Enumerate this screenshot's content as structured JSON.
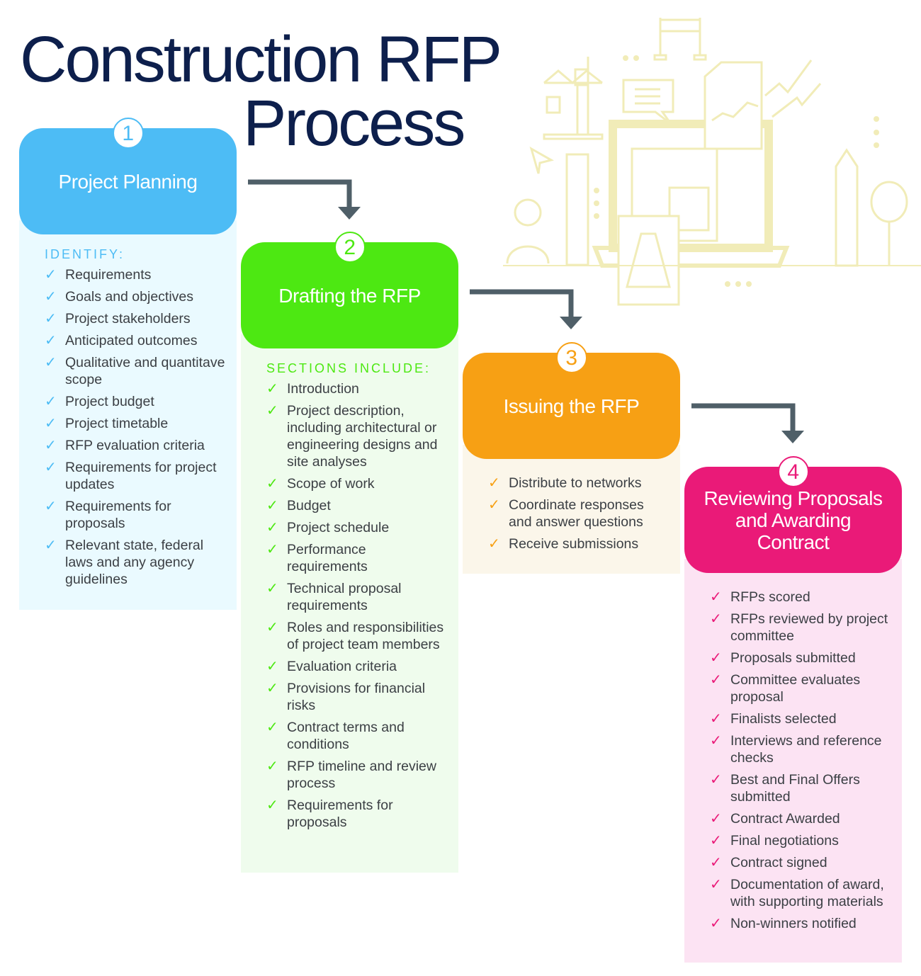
{
  "title": {
    "line1": "Construction RFP",
    "line2": "Process"
  },
  "colors": {
    "title": "#0d1f4c",
    "arrow": "#4f5f68",
    "illustration": "#f1ecb8"
  },
  "steps": [
    {
      "number": "1",
      "title": "Project Planning",
      "subtitle": "IDENTIFY:",
      "color": "#4dbcf5",
      "body_bg": "#eafaff",
      "check_icon": "checkmark-icon",
      "items": [
        "Requirements",
        "Goals and objectives",
        "Project stakeholders",
        "Anticipated outcomes",
        "Qualitative and quantitave scope",
        "Project budget",
        "Project timetable",
        "RFP evaluation criteria",
        "Requirements for project updates",
        "Requirements for proposals",
        "Relevant state, federal laws and any agency guidelines"
      ]
    },
    {
      "number": "2",
      "title": "Drafting the RFP",
      "subtitle": "SECTIONS INCLUDE:",
      "color": "#4de812",
      "body_bg": "#effced",
      "check_icon": "checkmark-icon",
      "items": [
        "Introduction",
        "Project description, including architectural or engineering designs and site analyses",
        "Scope of work",
        "Budget",
        "Project schedule",
        "Performance requirements",
        "Technical proposal requirements",
        "Roles and responsibilities of project team members",
        "Evaluation criteria",
        "Provisions for financial risks",
        "Contract terms and conditions",
        "RFP timeline and review process",
        "Requirements for proposals"
      ]
    },
    {
      "number": "3",
      "title": "Issuing the RFP",
      "color": "#f7a014",
      "body_bg": "#fbf6ea",
      "check_icon": "checkmark-icon",
      "items": [
        "Distribute to networks",
        "Coordinate responses and answer questions",
        "Receive submissions"
      ]
    },
    {
      "number": "4",
      "title": "Reviewing Proposals and Awarding Contract",
      "color": "#ea1a78",
      "body_bg": "#fce3f3",
      "check_icon": "checkmark-icon",
      "items": [
        "RFPs scored",
        "RFPs reviewed by project committee",
        "Proposals submitted",
        "Committee evaluates proposal",
        "Finalists selected",
        "Interviews and reference checks",
        "Best and Final Offers submitted",
        "Contract Awarded",
        "Final negotiations",
        "Contract signed",
        "Documentation of award, with supporting materials",
        "Non-winners notified"
      ]
    }
  ]
}
